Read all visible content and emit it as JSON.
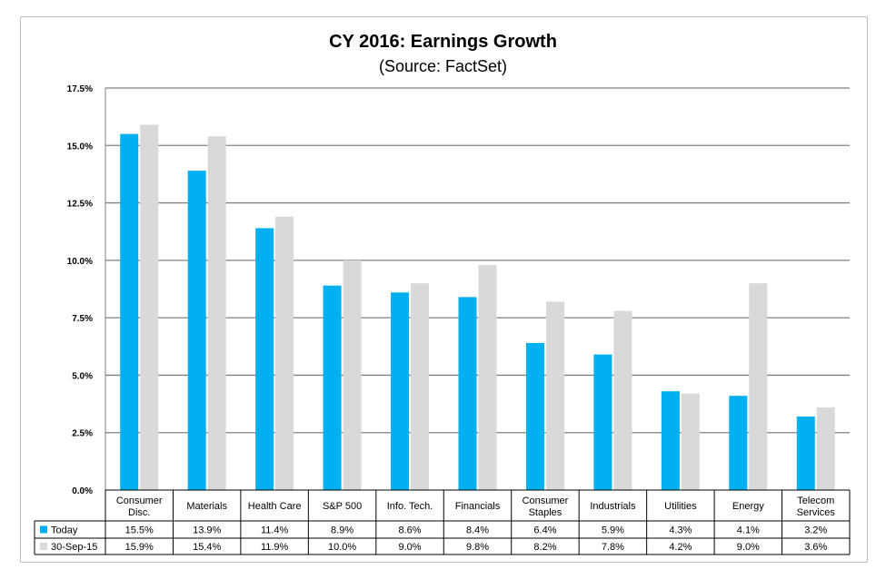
{
  "chart_data": {
    "type": "bar",
    "title": "CY 2016: Earnings Growth",
    "subtitle": "(Source: FactSet)",
    "categories": [
      [
        "Consumer",
        "Disc."
      ],
      [
        "Materials"
      ],
      [
        "Health Care"
      ],
      [
        "S&P 500"
      ],
      [
        "Info. Tech."
      ],
      [
        "Financials"
      ],
      [
        "Consumer",
        "Staples"
      ],
      [
        "Industrials"
      ],
      [
        "Utilities"
      ],
      [
        "Energy"
      ],
      [
        "Telecom",
        "Services"
      ]
    ],
    "yticks": [
      "0.0%",
      "2.5%",
      "5.0%",
      "7.5%",
      "10.0%",
      "12.5%",
      "15.0%",
      "17.5%"
    ],
    "ylim": [
      0,
      17.5
    ],
    "grid": true,
    "legend_placement": "data-table",
    "series": [
      {
        "name": "Today",
        "color": "#00b0f0",
        "values": [
          15.5,
          13.9,
          11.4,
          8.9,
          8.6,
          8.4,
          6.4,
          5.9,
          4.3,
          4.1,
          3.2
        ],
        "labels": [
          "15.5%",
          "13.9%",
          "11.4%",
          "8.9%",
          "8.6%",
          "8.4%",
          "6.4%",
          "5.9%",
          "4.3%",
          "4.1%",
          "3.2%"
        ]
      },
      {
        "name": "30-Sep-15",
        "color": "#d9d9d9",
        "values": [
          15.9,
          15.4,
          11.9,
          10.0,
          9.0,
          9.8,
          8.2,
          7.8,
          4.2,
          9.0,
          3.6
        ],
        "labels": [
          "15.9%",
          "15.4%",
          "11.9%",
          "10.0%",
          "9.0%",
          "9.8%",
          "8.2%",
          "7.8%",
          "4.2%",
          "9.0%",
          "3.6%"
        ]
      }
    ]
  }
}
